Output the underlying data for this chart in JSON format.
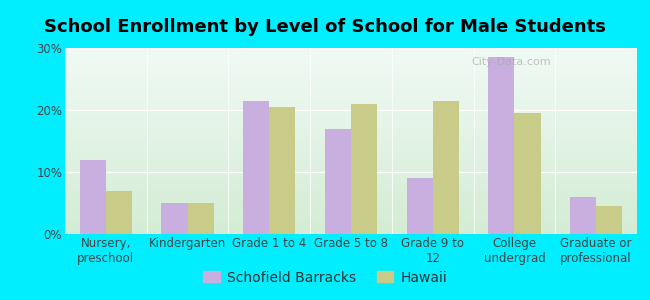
{
  "title": "School Enrollment by Level of School for Male Students",
  "categories": [
    "Nursery,\npreschool",
    "Kindergarten",
    "Grade 1 to 4",
    "Grade 5 to 8",
    "Grade 9 to\n12",
    "College\nundergrad",
    "Graduate or\nprofessional"
  ],
  "schofield": [
    12,
    5,
    21.5,
    17,
    9,
    28.5,
    6
  ],
  "hawaii": [
    7,
    5,
    20.5,
    21,
    21.5,
    19.5,
    4.5
  ],
  "bar_color_schofield": "#c9aee0",
  "bar_color_hawaii": "#c8cc88",
  "background_color": "#00eeff",
  "ylim": [
    0,
    30
  ],
  "yticks": [
    0,
    10,
    20,
    30
  ],
  "ytick_labels": [
    "0%",
    "10%",
    "20%",
    "30%"
  ],
  "legend_label_schofield": "Schofield Barracks",
  "legend_label_hawaii": "Hawaii",
  "title_fontsize": 13,
  "tick_fontsize": 8.5,
  "legend_fontsize": 10
}
